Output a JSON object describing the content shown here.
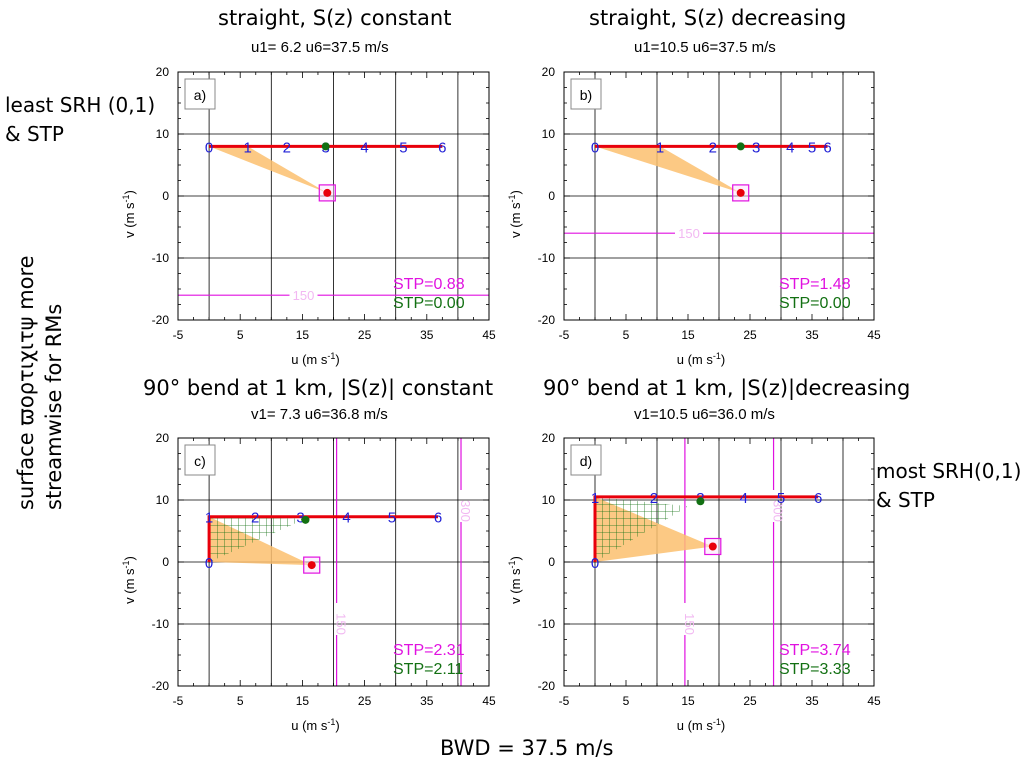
{
  "figure": {
    "left_note": {
      "line1": "least SRH (0,1)",
      "line2": "& STP"
    },
    "right_note": {
      "line1": "most SRH(0,1)",
      "line2": "& STP"
    },
    "vertical_note": {
      "line1": "surface  ϖορτιχιτψ  more",
      "line2": "streamwise for RMs"
    },
    "footer": "BWD = 37.5 m/s"
  },
  "colors": {
    "hodo": "#e8000b",
    "label": "#1f1fd6",
    "magenta": "#e011e0",
    "green": "#127012",
    "fill": "#fbc06e",
    "hatch": "#127012"
  },
  "chart_data": [
    {
      "type": "line",
      "id": "a",
      "panel_label": "a)",
      "title": "straight, S(z) constant",
      "subtitle": "u1= 6.2 u6=37.5 m/s",
      "xlabel": "u (m s",
      "ylabel": "v (m s",
      "unit_exp": "-1",
      "unit_close": ")",
      "xlim": [
        -5,
        45
      ],
      "ylim": [
        -20,
        20
      ],
      "xticks": [
        "-5",
        "5",
        "15",
        "25",
        "35",
        "45"
      ],
      "yticks": [
        "20",
        "10",
        "0",
        "-10",
        "-20"
      ],
      "hodograph": [
        [
          0,
          8
        ],
        [
          6.2,
          8
        ],
        [
          12.5,
          8
        ],
        [
          18.75,
          8
        ],
        [
          25,
          8
        ],
        [
          31.25,
          8
        ],
        [
          37.5,
          8
        ]
      ],
      "height_labels": [
        "0",
        "1",
        "2",
        "3",
        "4",
        "5",
        "6"
      ],
      "storm_motion": [
        19,
        0.5
      ],
      "green_dot": [
        18.75,
        8
      ],
      "shaded_triangle": [
        [
          0,
          8
        ],
        [
          6.2,
          8
        ],
        [
          19,
          0.5
        ]
      ],
      "hatched_triangle": null,
      "contours": [
        {
          "orient": "h",
          "value": -16,
          "label": "150"
        }
      ],
      "stp_magenta": "STP=0.88",
      "stp_green": "STP=0.00"
    },
    {
      "type": "line",
      "id": "b",
      "panel_label": "b)",
      "title": "straight, S(z) decreasing",
      "subtitle": "u1=10.5 u6=37.5 m/s",
      "xlabel": "u (m s",
      "ylabel": "v (m s",
      "unit_exp": "-1",
      "unit_close": ")",
      "xlim": [
        -5,
        45
      ],
      "ylim": [
        -20,
        20
      ],
      "xticks": [
        "-5",
        "5",
        "15",
        "25",
        "35",
        "45"
      ],
      "yticks": [
        "20",
        "10",
        "0",
        "-10",
        "-20"
      ],
      "hodograph": [
        [
          0,
          8
        ],
        [
          10.5,
          8
        ],
        [
          19,
          8
        ],
        [
          26,
          8
        ],
        [
          31.5,
          8
        ],
        [
          35,
          8
        ],
        [
          37.5,
          8
        ]
      ],
      "height_labels": [
        "0",
        "1",
        "2",
        "3",
        "4",
        "5",
        "6"
      ],
      "storm_motion": [
        23.5,
        0.5
      ],
      "green_dot": [
        23.5,
        8
      ],
      "shaded_triangle": [
        [
          0,
          8
        ],
        [
          10.5,
          8
        ],
        [
          23.5,
          0.5
        ]
      ],
      "hatched_triangle": null,
      "contours": [
        {
          "orient": "h",
          "value": -6,
          "label": "150"
        }
      ],
      "stp_magenta": "STP=1.48",
      "stp_green": "STP=0.00"
    },
    {
      "type": "line",
      "id": "c",
      "panel_label": "c)",
      "title": "90° bend at 1 km, |S(z)| constant",
      "subtitle": "v1= 7.3 u6=36.8 m/s",
      "xlabel": "u (m s",
      "ylabel": "v (m s",
      "unit_exp": "-1",
      "unit_close": ")",
      "xlim": [
        -5,
        45
      ],
      "ylim": [
        -20,
        20
      ],
      "xticks": [
        "-5",
        "5",
        "15",
        "25",
        "35",
        "45"
      ],
      "yticks": [
        "20",
        "10",
        "0",
        "-10",
        "-20"
      ],
      "hodograph": [
        [
          0,
          0
        ],
        [
          0,
          7.3
        ],
        [
          7.4,
          7.3
        ],
        [
          14.7,
          7.3
        ],
        [
          22.1,
          7.3
        ],
        [
          29.4,
          7.3
        ],
        [
          36.8,
          7.3
        ]
      ],
      "height_labels": [
        "0",
        "1",
        "2",
        "3",
        "4",
        "5",
        "6"
      ],
      "storm_motion": [
        16.5,
        -0.5
      ],
      "green_dot": [
        15.5,
        6.8
      ],
      "shaded_triangle": [
        [
          0,
          0
        ],
        [
          0,
          7.3
        ],
        [
          16.5,
          -0.5
        ]
      ],
      "hatched_triangle": [
        [
          0,
          0
        ],
        [
          0,
          7.3
        ],
        [
          15.5,
          7
        ]
      ],
      "contours": [
        {
          "orient": "v",
          "value": 20.5,
          "label": "150"
        },
        {
          "orient": "v",
          "value": 40.5,
          "label": "300"
        }
      ],
      "stp_magenta": "STP=2.31",
      "stp_green": "STP=2.11"
    },
    {
      "type": "line",
      "id": "d",
      "panel_label": "d)",
      "title": "90° bend at 1 km, |S(z)|decreasing",
      "subtitle": "v1=10.5 u6=36.0 m/s",
      "xlabel": "u (m s",
      "ylabel": "v (m s",
      "unit_exp": "-1",
      "unit_close": ")",
      "xlim": [
        -5,
        45
      ],
      "ylim": [
        -20,
        20
      ],
      "xticks": [
        "-5",
        "5",
        "15",
        "25",
        "35",
        "45"
      ],
      "yticks": [
        "20",
        "10",
        "0",
        "-10",
        "-20"
      ],
      "hodograph": [
        [
          0,
          0
        ],
        [
          0,
          10.5
        ],
        [
          9.5,
          10.5
        ],
        [
          17,
          10.5
        ],
        [
          24,
          10.5
        ],
        [
          30,
          10.5
        ],
        [
          36,
          10.5
        ]
      ],
      "height_labels": [
        "0",
        "1",
        "2",
        "3",
        "4",
        "5",
        "6"
      ],
      "storm_motion": [
        19,
        2.5
      ],
      "green_dot": [
        17,
        9.8
      ],
      "shaded_triangle": [
        [
          0,
          0
        ],
        [
          0,
          10.5
        ],
        [
          19,
          2.5
        ]
      ],
      "hatched_triangle": [
        [
          0,
          0
        ],
        [
          0,
          10.5
        ],
        [
          15,
          9
        ]
      ],
      "contours": [
        {
          "orient": "v",
          "value": 14.5,
          "label": "150"
        },
        {
          "orient": "v",
          "value": 28.8,
          "label": "300"
        }
      ],
      "stp_magenta": "STP=3.74",
      "stp_green": "STP=3.33"
    }
  ]
}
